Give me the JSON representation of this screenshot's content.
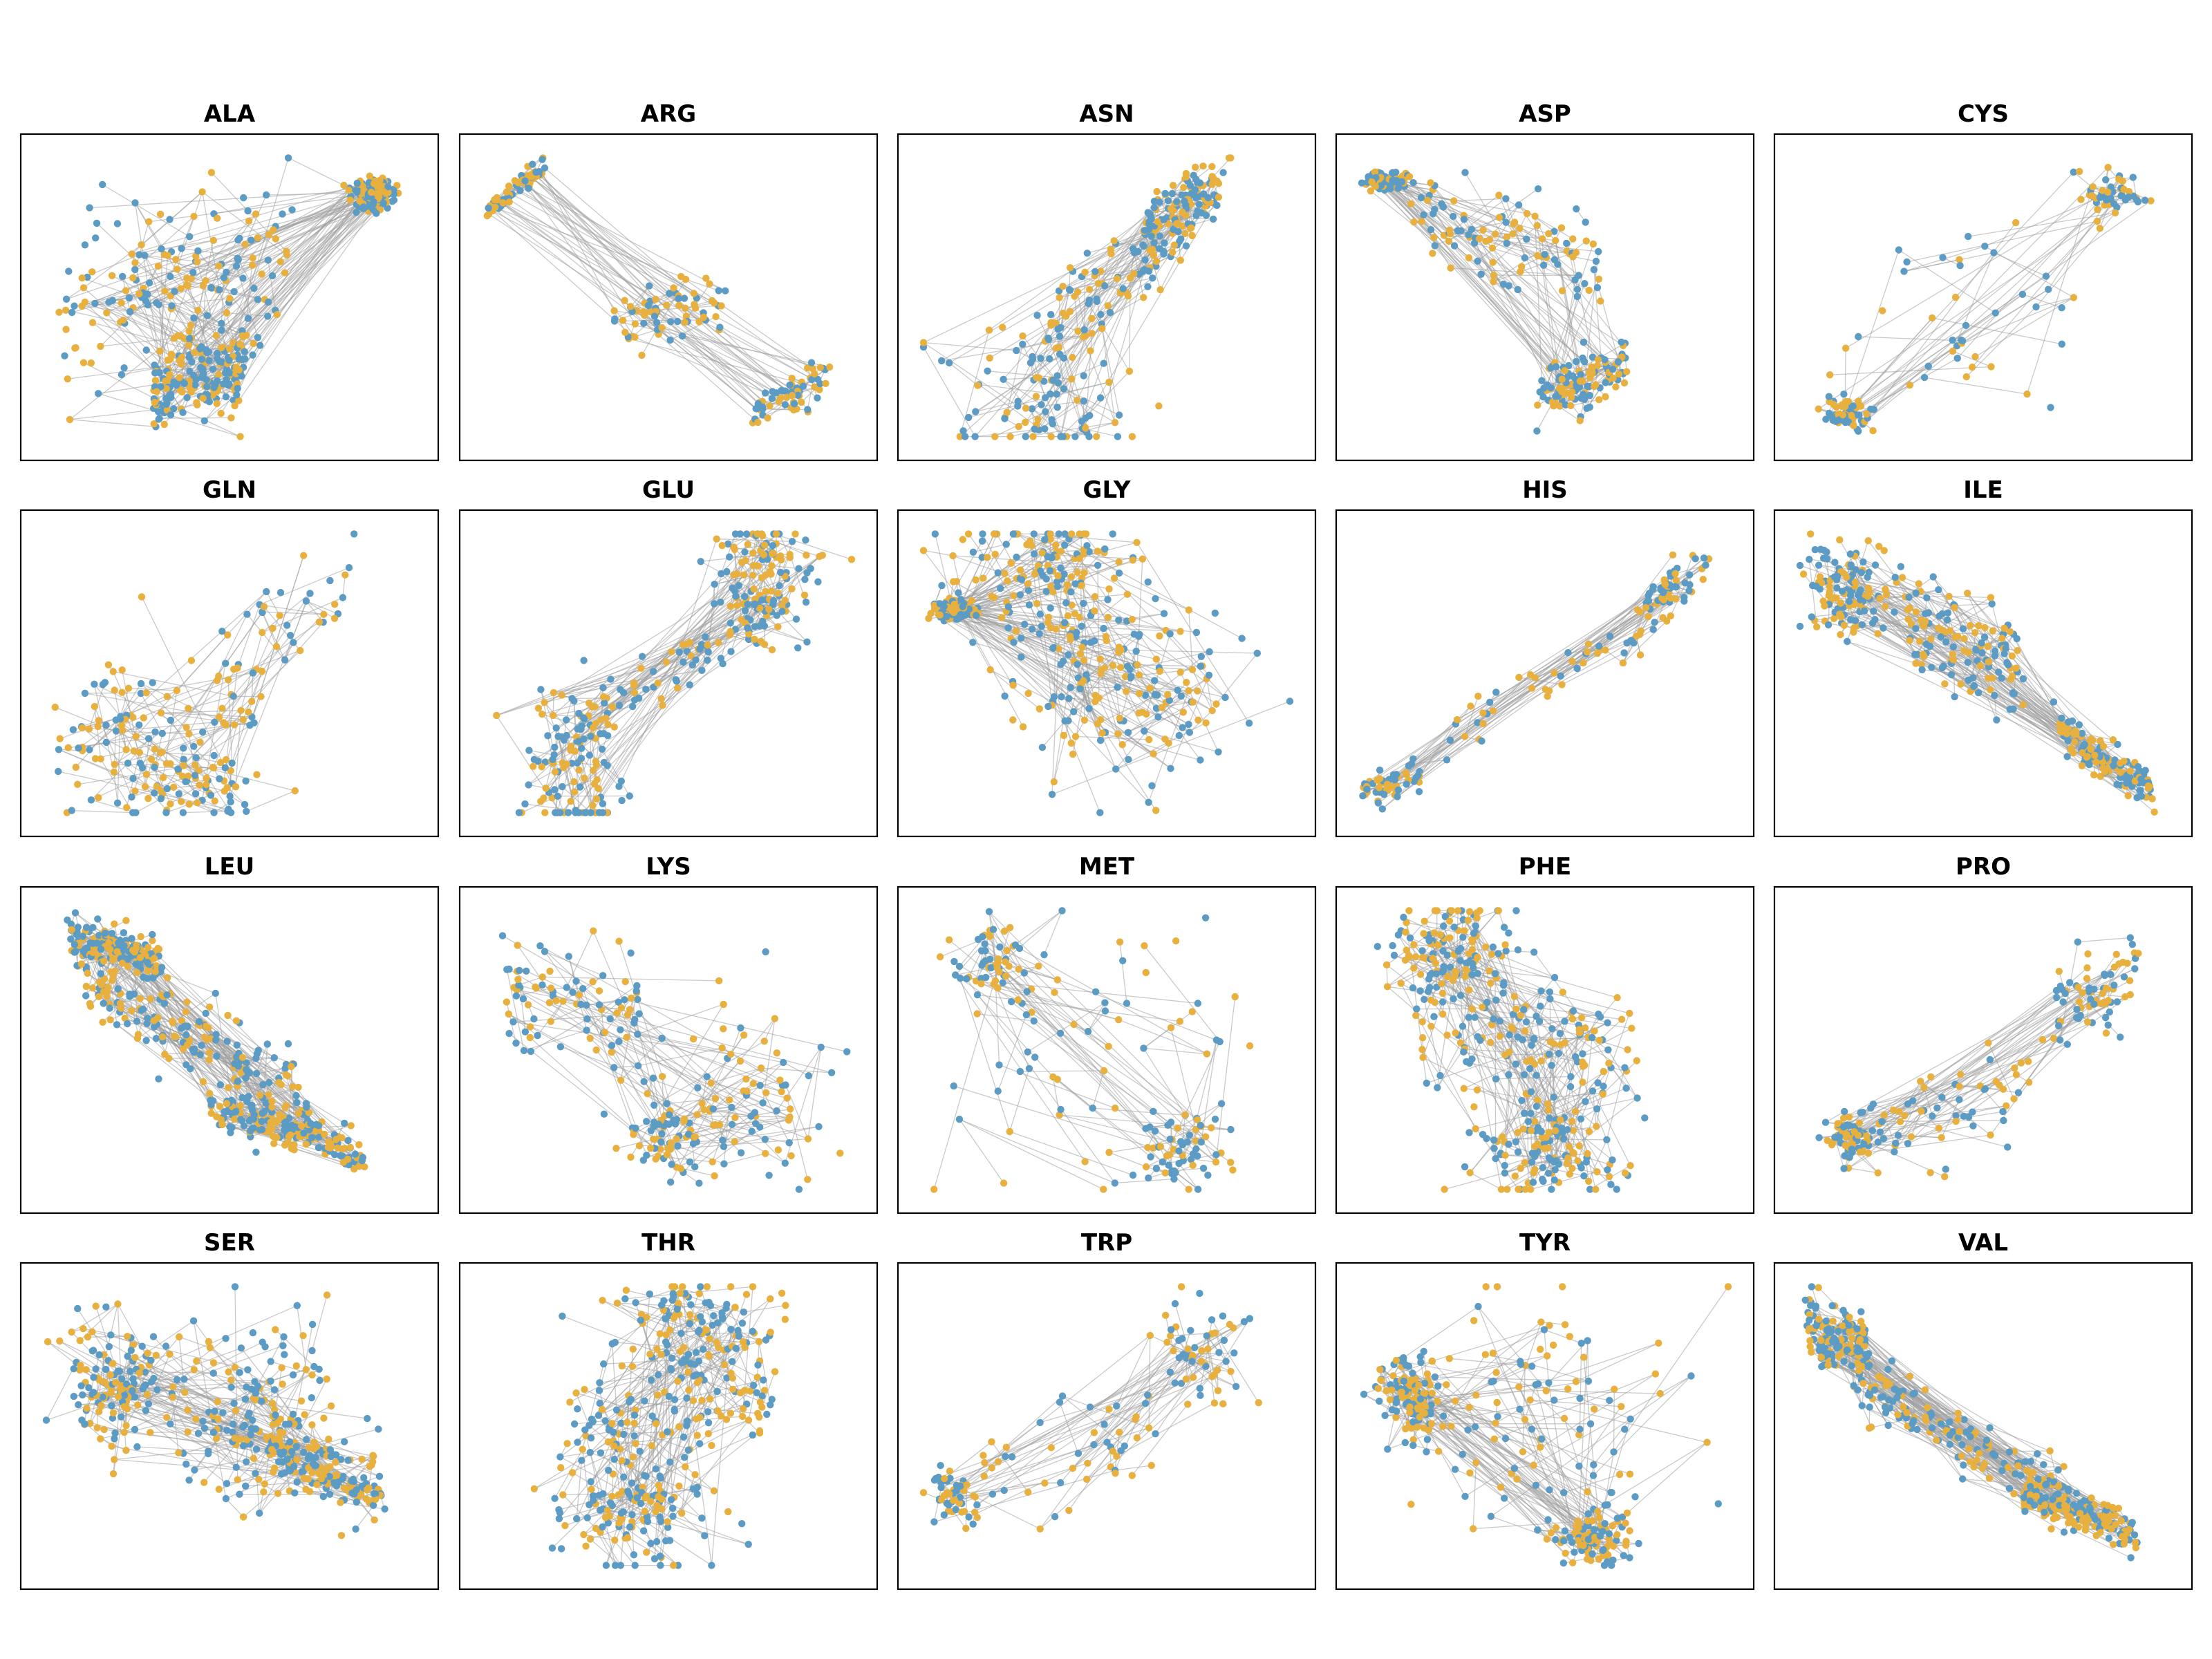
{
  "figure": {
    "background": "#ffffff"
  },
  "chart_data": {
    "type": "scatter",
    "description_kind": "small-multiples",
    "layout": {
      "rows": 4,
      "cols": 5
    },
    "xlim": [
      0,
      1
    ],
    "ylim": [
      0,
      1
    ],
    "ticks": "none",
    "grid": false,
    "legend": "none",
    "series_colors": {
      "a": "#5b9bc4",
      "b": "#e8b13f"
    },
    "edge_color": "#9e9e9e",
    "panels": [
      {
        "title": "ALA",
        "point_count": 540,
        "shape": "blob",
        "clusters": [
          [
            0.35,
            0.55,
            0.3,
            0.3,
            0.3,
            0.22
          ],
          [
            0.42,
            0.22,
            0.12,
            0.3,
            0.16,
            0.1
          ],
          [
            0.88,
            0.85,
            0.05,
            0.08,
            0.06,
            0.0
          ]
        ]
      },
      {
        "title": "ARG",
        "point_count": 200,
        "shape": "diagonal",
        "clusters": [
          [
            0.1,
            0.88,
            0.08,
            0.25,
            0.05,
            0.35
          ],
          [
            0.5,
            0.45,
            0.15,
            0.3,
            0.1,
            0.1
          ],
          [
            0.82,
            0.16,
            0.1,
            0.22,
            0.08,
            0.25
          ]
        ]
      },
      {
        "title": "ASN",
        "point_count": 330,
        "shape": "blob",
        "clusters": [
          [
            0.55,
            0.6,
            0.2,
            0.35,
            0.18,
            0.55
          ],
          [
            0.35,
            0.15,
            0.22,
            0.3,
            0.08,
            0.0
          ],
          [
            0.7,
            0.82,
            0.1,
            0.18,
            0.1,
            0.4
          ]
        ]
      },
      {
        "title": "ASP",
        "point_count": 330,
        "shape": "blob",
        "clusters": [
          [
            0.4,
            0.7,
            0.25,
            0.35,
            0.16,
            -0.3
          ],
          [
            0.6,
            0.22,
            0.12,
            0.3,
            0.1,
            0.2
          ],
          [
            0.08,
            0.9,
            0.05,
            0.12,
            0.02,
            0.0
          ]
        ]
      },
      {
        "title": "CYS",
        "point_count": 150,
        "shape": "sparse",
        "clusters": [
          [
            0.45,
            0.4,
            0.3,
            0.35,
            0.2,
            0.0
          ],
          [
            0.85,
            0.85,
            0.08,
            0.1,
            0.08,
            0.0
          ],
          [
            0.15,
            0.1,
            0.06,
            0.08,
            0.06,
            0.0
          ]
        ]
      },
      {
        "title": "GLN",
        "point_count": 220,
        "shape": "sparse",
        "clusters": [
          [
            0.2,
            0.3,
            0.15,
            0.25,
            0.15,
            0.0
          ],
          [
            0.62,
            0.6,
            0.18,
            0.35,
            0.25,
            0.5
          ],
          [
            0.4,
            0.12,
            0.15,
            0.2,
            0.06,
            0.0
          ]
        ]
      },
      {
        "title": "GLU",
        "point_count": 330,
        "shape": "diagonal",
        "clusters": [
          [
            0.5,
            0.5,
            0.3,
            0.45,
            0.1,
            0.6
          ],
          [
            0.25,
            0.15,
            0.12,
            0.3,
            0.1,
            0.0
          ],
          [
            0.75,
            0.85,
            0.12,
            0.25,
            0.08,
            0.0
          ]
        ]
      },
      {
        "title": "GLY",
        "point_count": 520,
        "shape": "blob",
        "clusters": [
          [
            0.55,
            0.48,
            0.28,
            0.32,
            0.26,
            0.0
          ],
          [
            0.35,
            0.85,
            0.2,
            0.28,
            0.08,
            0.0
          ],
          [
            0.1,
            0.72,
            0.05,
            0.1,
            0.03,
            0.0
          ]
        ]
      },
      {
        "title": "HIS",
        "point_count": 170,
        "shape": "diagonal",
        "clusters": [
          [
            0.55,
            0.5,
            0.3,
            0.45,
            0.12,
            0.55
          ],
          [
            0.1,
            0.12,
            0.08,
            0.12,
            0.06,
            0.3
          ],
          [
            0.85,
            0.82,
            0.08,
            0.12,
            0.1,
            0.5
          ]
        ]
      },
      {
        "title": "ILE",
        "point_count": 420,
        "shape": "diagonal",
        "clusters": [
          [
            0.15,
            0.78,
            0.1,
            0.15,
            0.12,
            0.0
          ],
          [
            0.45,
            0.6,
            0.15,
            0.25,
            0.18,
            -0.3
          ],
          [
            0.82,
            0.2,
            0.12,
            0.22,
            0.08,
            -0.5
          ]
        ]
      },
      {
        "title": "LEU",
        "point_count": 560,
        "shape": "diagonal",
        "clusters": [
          [
            0.4,
            0.55,
            0.3,
            0.45,
            0.16,
            -0.55
          ],
          [
            0.2,
            0.85,
            0.12,
            0.15,
            0.08,
            -0.3
          ],
          [
            0.65,
            0.22,
            0.2,
            0.3,
            0.08,
            -0.3
          ]
        ]
      },
      {
        "title": "LYS",
        "point_count": 240,
        "shape": "sparse",
        "clusters": [
          [
            0.25,
            0.65,
            0.18,
            0.22,
            0.2,
            -0.2
          ],
          [
            0.72,
            0.35,
            0.2,
            0.3,
            0.18,
            0.0
          ],
          [
            0.5,
            0.2,
            0.12,
            0.15,
            0.08,
            0.0
          ]
        ]
      },
      {
        "title": "MET",
        "point_count": 180,
        "shape": "sparse",
        "clusters": [
          [
            0.45,
            0.5,
            0.35,
            0.42,
            0.28,
            0.0
          ],
          [
            0.2,
            0.8,
            0.1,
            0.12,
            0.1,
            0.0
          ],
          [
            0.7,
            0.15,
            0.12,
            0.15,
            0.08,
            0.0
          ]
        ]
      },
      {
        "title": "PHE",
        "point_count": 420,
        "shape": "blob",
        "clusters": [
          [
            0.45,
            0.55,
            0.3,
            0.38,
            0.22,
            -0.2
          ],
          [
            0.5,
            0.15,
            0.18,
            0.25,
            0.08,
            0.0
          ],
          [
            0.25,
            0.85,
            0.15,
            0.22,
            0.08,
            0.0
          ]
        ]
      },
      {
        "title": "PRO",
        "point_count": 210,
        "shape": "sparse",
        "clusters": [
          [
            0.4,
            0.3,
            0.22,
            0.32,
            0.18,
            0.3
          ],
          [
            0.78,
            0.7,
            0.12,
            0.22,
            0.18,
            0.4
          ],
          [
            0.15,
            0.2,
            0.06,
            0.1,
            0.08,
            0.0
          ]
        ]
      },
      {
        "title": "SER",
        "point_count": 460,
        "shape": "blob",
        "clusters": [
          [
            0.2,
            0.65,
            0.12,
            0.2,
            0.18,
            0.0
          ],
          [
            0.55,
            0.55,
            0.2,
            0.28,
            0.2,
            0.0
          ],
          [
            0.75,
            0.35,
            0.15,
            0.22,
            0.12,
            -0.3
          ]
        ]
      },
      {
        "title": "THR",
        "point_count": 400,
        "shape": "blob",
        "clusters": [
          [
            0.5,
            0.55,
            0.28,
            0.35,
            0.22,
            0.3
          ],
          [
            0.55,
            0.85,
            0.2,
            0.25,
            0.06,
            0.0
          ],
          [
            0.4,
            0.2,
            0.18,
            0.22,
            0.08,
            0.0
          ]
        ]
      },
      {
        "title": "TRP",
        "point_count": 160,
        "shape": "sparse",
        "clusters": [
          [
            0.4,
            0.4,
            0.25,
            0.35,
            0.22,
            0.3
          ],
          [
            0.75,
            0.75,
            0.12,
            0.2,
            0.12,
            0.0
          ],
          [
            0.1,
            0.25,
            0.05,
            0.08,
            0.1,
            0.0
          ]
        ]
      },
      {
        "title": "TYR",
        "point_count": 340,
        "shape": "blob",
        "clusters": [
          [
            0.5,
            0.55,
            0.3,
            0.38,
            0.25,
            0.0
          ],
          [
            0.15,
            0.6,
            0.08,
            0.12,
            0.12,
            0.0
          ],
          [
            0.62,
            0.12,
            0.08,
            0.12,
            0.08,
            0.0
          ]
        ]
      },
      {
        "title": "VAL",
        "point_count": 500,
        "shape": "diagonal",
        "clusters": [
          [
            0.45,
            0.45,
            0.3,
            0.45,
            0.12,
            -0.55
          ],
          [
            0.12,
            0.8,
            0.08,
            0.12,
            0.12,
            -0.2
          ],
          [
            0.75,
            0.2,
            0.15,
            0.25,
            0.08,
            -0.3
          ]
        ]
      }
    ]
  }
}
